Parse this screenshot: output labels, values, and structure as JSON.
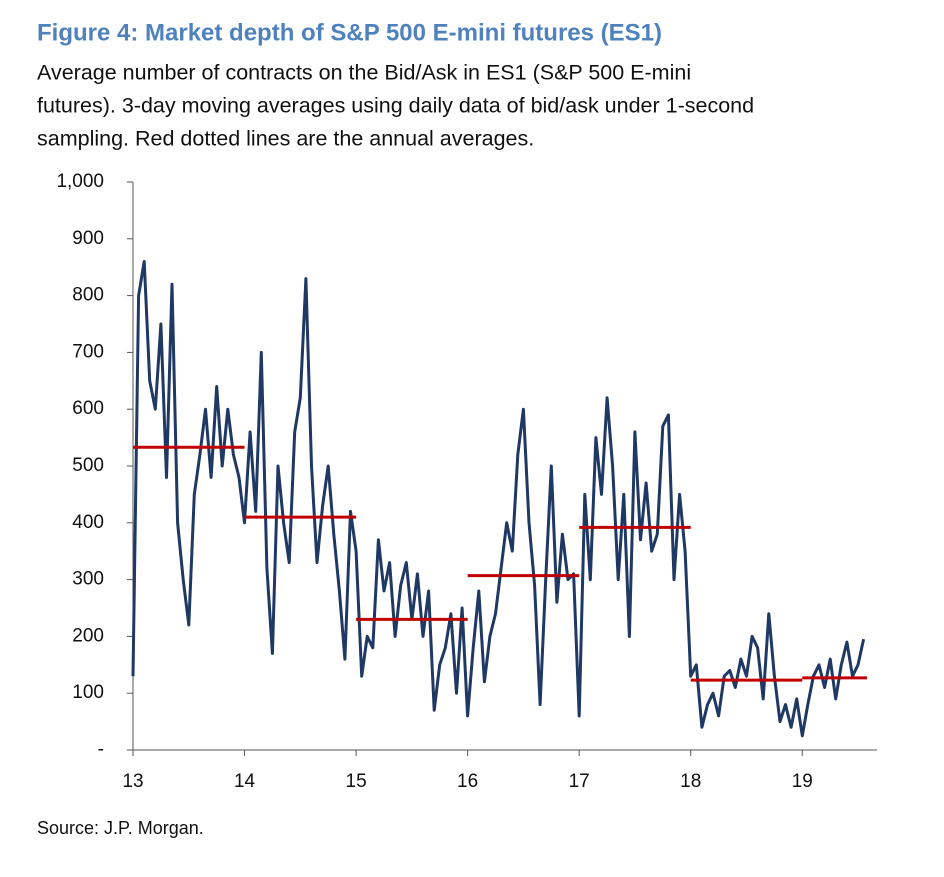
{
  "chart_data": {
    "type": "line",
    "title": "Figure 4: Market depth of S&P 500 E-mini futures (ES1)",
    "subtitle": [
      "Average number of contracts on the Bid/Ask in ES1 (S&P 500 E-mini",
      "futures). 3-day moving averages using daily data of bid/ask under 1-second",
      "sampling. Red dotted lines are the annual averages."
    ],
    "source": "Source: J.P. Morgan.",
    "xlim": [
      13,
      19.67
    ],
    "xticks": [
      13,
      14,
      15,
      16,
      17,
      18,
      19
    ],
    "ylim": [
      0,
      1000
    ],
    "yticks": [
      {
        "value": 0,
        "label": "-"
      },
      100,
      200,
      300,
      400,
      500,
      600,
      700,
      800,
      900,
      {
        "value": 1000,
        "label": "1,000"
      }
    ],
    "x": [
      13.0,
      13.05,
      13.1,
      13.15,
      13.2,
      13.25,
      13.3,
      13.35,
      13.4,
      13.45,
      13.5,
      13.55,
      13.6,
      13.65,
      13.7,
      13.75,
      13.8,
      13.85,
      13.9,
      13.95,
      14.0,
      14.05,
      14.1,
      14.15,
      14.2,
      14.25,
      14.3,
      14.35,
      14.4,
      14.45,
      14.5,
      14.55,
      14.6,
      14.65,
      14.7,
      14.75,
      14.8,
      14.85,
      14.9,
      14.95,
      15.0,
      15.05,
      15.1,
      15.15,
      15.2,
      15.25,
      15.3,
      15.35,
      15.4,
      15.45,
      15.5,
      15.55,
      15.6,
      15.65,
      15.7,
      15.75,
      15.8,
      15.85,
      15.9,
      15.95,
      16.0,
      16.05,
      16.1,
      16.15,
      16.2,
      16.25,
      16.3,
      16.35,
      16.4,
      16.45,
      16.5,
      16.55,
      16.6,
      16.65,
      16.7,
      16.75,
      16.8,
      16.85,
      16.9,
      16.95,
      17.0,
      17.05,
      17.1,
      17.15,
      17.2,
      17.25,
      17.3,
      17.35,
      17.4,
      17.45,
      17.5,
      17.55,
      17.6,
      17.65,
      17.7,
      17.75,
      17.8,
      17.85,
      17.9,
      17.95,
      18.0,
      18.05,
      18.1,
      18.15,
      18.2,
      18.25,
      18.3,
      18.35,
      18.4,
      18.45,
      18.5,
      18.55,
      18.6,
      18.65,
      18.7,
      18.75,
      18.8,
      18.85,
      18.9,
      18.95,
      19.0,
      19.05,
      19.1,
      19.15,
      19.2,
      19.25,
      19.3,
      19.35,
      19.4,
      19.45,
      19.5,
      19.55
    ],
    "series": [
      {
        "color": "#1f3864",
        "values": [
          130,
          800,
          860,
          650,
          600,
          750,
          480,
          820,
          400,
          300,
          220,
          450,
          520,
          600,
          480,
          640,
          500,
          600,
          520,
          480,
          400,
          560,
          420,
          700,
          320,
          170,
          500,
          400,
          330,
          560,
          620,
          830,
          500,
          330,
          430,
          500,
          380,
          280,
          160,
          420,
          350,
          130,
          200,
          180,
          370,
          280,
          330,
          200,
          290,
          330,
          230,
          310,
          200,
          280,
          70,
          150,
          180,
          240,
          100,
          250,
          60,
          180,
          280,
          120,
          200,
          240,
          320,
          400,
          350,
          520,
          600,
          400,
          290,
          80,
          300,
          500,
          260,
          380,
          300,
          310,
          60,
          450,
          300,
          550,
          450,
          620,
          500,
          300,
          450,
          200,
          560,
          370,
          470,
          350,
          380,
          570,
          590,
          300,
          450,
          350,
          130,
          150,
          40,
          80,
          100,
          60,
          130,
          140,
          110,
          160,
          130,
          200,
          180,
          90,
          240,
          130,
          50,
          80,
          40,
          90,
          25,
          80,
          130,
          150,
          110,
          160,
          90,
          150,
          190,
          130,
          150,
          195
        ]
      }
    ],
    "averages": {
      "color": "#c00000",
      "segments": [
        {
          "start": 13,
          "end": 14,
          "value": 533
        },
        {
          "start": 14,
          "end": 15,
          "value": 410
        },
        {
          "start": 15,
          "end": 16,
          "value": 230
        },
        {
          "start": 16,
          "end": 17,
          "value": 307
        },
        {
          "start": 17,
          "end": 18,
          "value": 392
        },
        {
          "start": 18,
          "end": 19,
          "value": 123
        },
        {
          "start": 19,
          "end": 19.58,
          "value": 127
        }
      ]
    }
  }
}
